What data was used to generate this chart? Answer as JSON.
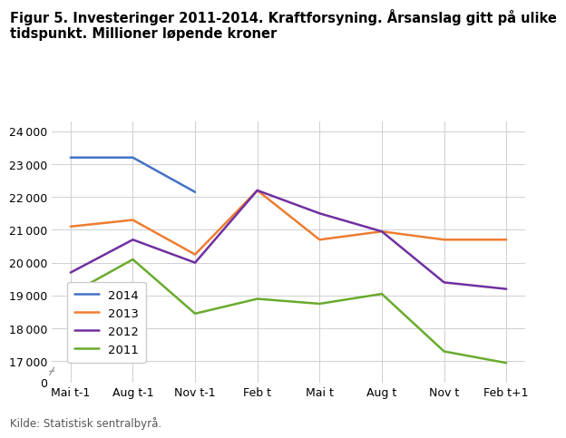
{
  "title": "Figur 5. Investeringer 2011-2014. Kraftforsyning. Årsanslag gitt på ulike\ntidspunkt. Millioner løpende kroner",
  "source": "Kilde: Statistisk sentralbyrå.",
  "x_labels": [
    "Mai t-1",
    "Aug t-1",
    "Nov t-1",
    "Feb t",
    "Mai t",
    "Aug t",
    "Nov t",
    "Feb t+1"
  ],
  "series": [
    {
      "label": "2014",
      "color": "#4472C4",
      "data": [
        23200,
        23200,
        22150,
        null,
        null,
        null,
        null,
        null
      ]
    },
    {
      "label": "2013",
      "color": "#ED7D31",
      "data": [
        21100,
        21300,
        20250,
        22200,
        20700,
        20950,
        20700,
        20700
      ]
    },
    {
      "label": "2012",
      "color": "#7030A0",
      "data": [
        19700,
        20700,
        20000,
        22200,
        21500,
        20950,
        19400,
        19200
      ]
    },
    {
      "label": "2011",
      "color": "#6AAB2E",
      "data": [
        19050,
        20100,
        18450,
        18900,
        18750,
        19050,
        17300,
        16950
      ]
    }
  ],
  "ylim_main": [
    16700,
    24300
  ],
  "ylim_zero": [
    0,
    500
  ],
  "yticks_main": [
    17000,
    18000,
    19000,
    20000,
    21000,
    22000,
    23000,
    24000
  ],
  "background_color": "#ffffff",
  "grid_color": "#d0d0d0",
  "title_fontsize": 10.5,
  "legend_fontsize": 9.5,
  "tick_fontsize": 9
}
